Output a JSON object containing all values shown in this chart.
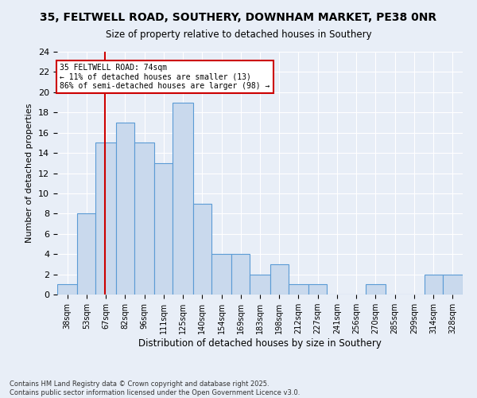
{
  "title": "35, FELTWELL ROAD, SOUTHERY, DOWNHAM MARKET, PE38 0NR",
  "subtitle": "Size of property relative to detached houses in Southery",
  "xlabel": "Distribution of detached houses by size in Southery",
  "ylabel": "Number of detached properties",
  "footnote1": "Contains HM Land Registry data © Crown copyright and database right 2025.",
  "footnote2": "Contains public sector information licensed under the Open Government Licence v3.0.",
  "categories": [
    "38sqm",
    "53sqm",
    "67sqm",
    "82sqm",
    "96sqm",
    "111sqm",
    "125sqm",
    "140sqm",
    "154sqm",
    "169sqm",
    "183sqm",
    "198sqm",
    "212sqm",
    "227sqm",
    "241sqm",
    "256sqm",
    "270sqm",
    "285sqm",
    "299sqm",
    "314sqm",
    "328sqm"
  ],
  "values": [
    1,
    8,
    15,
    17,
    15,
    13,
    19,
    9,
    4,
    4,
    2,
    3,
    1,
    1,
    0,
    0,
    1,
    0,
    0,
    2,
    2
  ],
  "bar_color": "#c9d9ed",
  "bar_edge_color": "#5b9bd5",
  "bg_color": "#e8eef7",
  "grid_color": "#ffffff",
  "annotation_text": "35 FELTWELL ROAD: 74sqm\n← 11% of detached houses are smaller (13)\n86% of semi-detached houses are larger (98) →",
  "annotation_box_color": "#ffffff",
  "annotation_box_edge": "#cc0000",
  "vline_x": 74,
  "vline_color": "#cc0000",
  "ylim": [
    0,
    24
  ],
  "yticks": [
    0,
    2,
    4,
    6,
    8,
    10,
    12,
    14,
    16,
    18,
    20,
    22,
    24
  ],
  "bin_edges": [
    38,
    53,
    67,
    82,
    96,
    111,
    125,
    140,
    154,
    169,
    183,
    198,
    212,
    227,
    241,
    256,
    270,
    285,
    299,
    314,
    328,
    343
  ]
}
